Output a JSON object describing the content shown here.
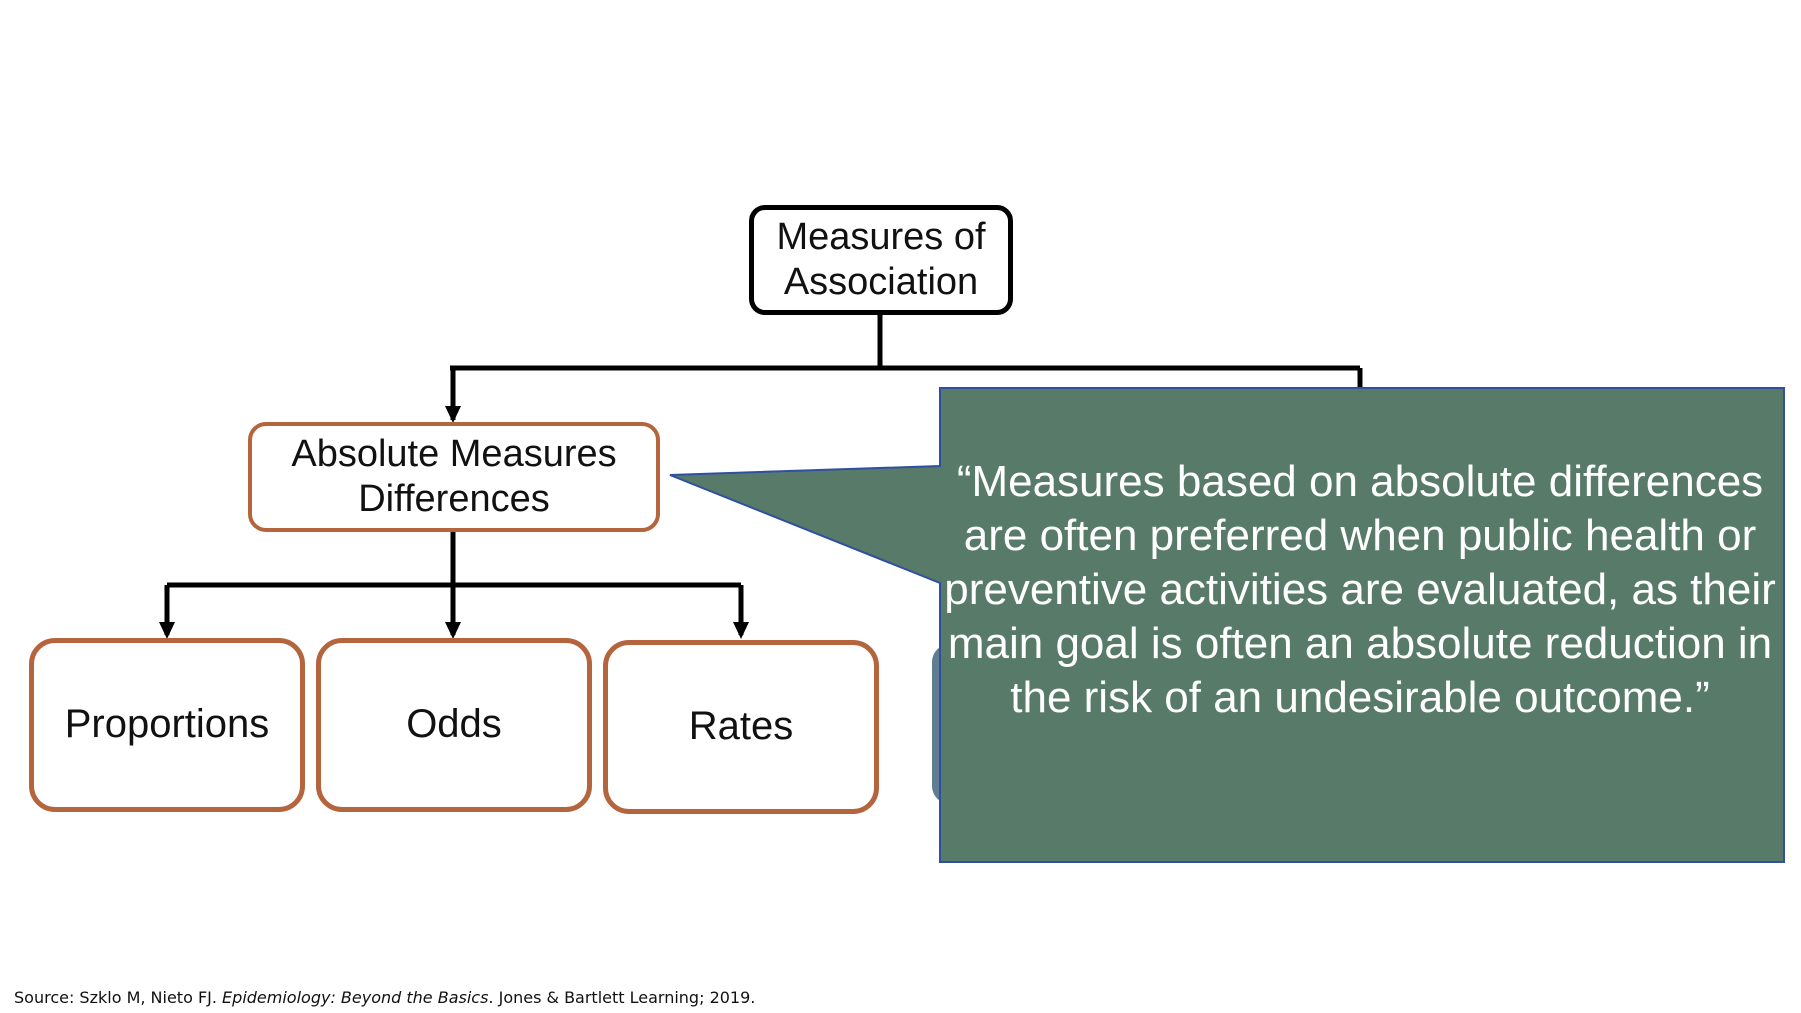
{
  "diagram": {
    "root": {
      "line1": "Measures of",
      "line2": "Association"
    },
    "branch_absolute": {
      "line1": "Absolute Measures",
      "line2": "Differences"
    },
    "leaves": [
      {
        "label": "Proportions"
      },
      {
        "label": "Odds"
      },
      {
        "label": "Rates"
      }
    ]
  },
  "callout": {
    "text": "“Measures based on absolute differences are often preferred when public health or preventive activities are evaluated, as their main goal is often an absolute reduction in the risk of an undesirable outcome.”"
  },
  "source": {
    "prefix": "Source: Szklo M, Nieto FJ. ",
    "title": "Epidemiology: Beyond the Basics",
    "suffix": ". Jones & Bartlett Learning; 2019."
  },
  "colors": {
    "connector": "#000000",
    "box_border": "#b5653e",
    "callout_fill": "#577b68",
    "callout_border": "#2f4fa0",
    "hidden_node": "#5f7c92"
  }
}
